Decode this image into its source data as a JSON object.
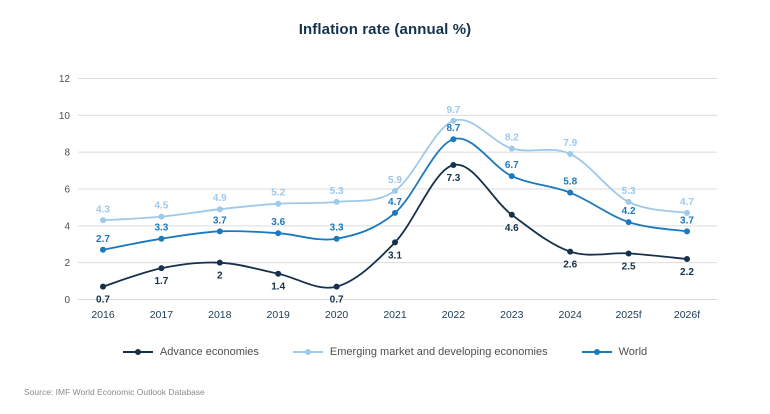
{
  "title": "Inflation rate (annual %)",
  "source": "Source: IMF World Economic Outlook Database",
  "colors": {
    "title": "#16334e",
    "grid": "#dcdcdc",
    "y_tick_label": "#4f4f4f",
    "x_tick_label": "#1b3a55",
    "legend_text": "#4f4f4f",
    "source_text": "#8c8c8c",
    "background": "#ffffff"
  },
  "chart_data": {
    "type": "line",
    "title": "Inflation rate (annual %)",
    "categories": [
      "2016",
      "2017",
      "2018",
      "2019",
      "2020",
      "2021",
      "2022",
      "2023",
      "2024",
      "2025f",
      "2026f"
    ],
    "series": [
      {
        "name": "Advance economies",
        "color": "#15314b",
        "label_position": "below",
        "values": [
          0.7,
          1.7,
          2,
          1.4,
          0.7,
          3.1,
          7.3,
          4.6,
          2.6,
          2.5,
          2.2
        ]
      },
      {
        "name": "Emerging market and developing economies",
        "color": "#9fc9e9",
        "label_position": "above",
        "values": [
          4.3,
          4.5,
          4.9,
          5.2,
          5.3,
          5.9,
          9.7,
          8.2,
          7.9,
          5.3,
          4.7
        ]
      },
      {
        "name": "World",
        "color": "#1b79c0",
        "label_position": "above",
        "values": [
          2.7,
          3.3,
          3.7,
          3.6,
          3.3,
          4.7,
          8.7,
          6.7,
          5.8,
          4.2,
          3.7
        ]
      }
    ],
    "yticks": [
      0,
      2,
      4,
      6,
      8,
      10,
      12
    ],
    "ylim": [
      0,
      12
    ],
    "grid": "horizontal-only",
    "legend_position": "bottom",
    "data_labels": true
  }
}
